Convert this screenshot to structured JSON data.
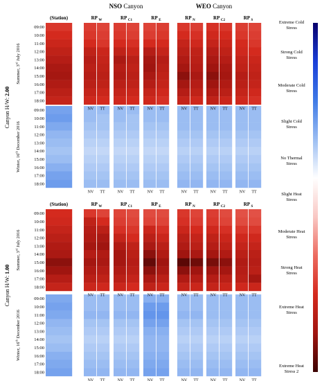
{
  "figure": {
    "canyon_titles": [
      {
        "prefix": "NSO",
        "suffix": " Canyon"
      },
      {
        "prefix": "WEO",
        "suffix": " Canyon"
      }
    ],
    "columns": [
      {
        "main": "(Station)",
        "sub": ""
      },
      {
        "main": "RP",
        "sub": "W"
      },
      {
        "main": "RP",
        "sub": "C1"
      },
      {
        "main": "RP",
        "sub": "E"
      },
      {
        "main": "RP",
        "sub": "N"
      },
      {
        "main": "RP",
        "sub": "C2"
      },
      {
        "main": "RP",
        "sub": "S"
      }
    ],
    "subcolumns": [
      "NV",
      "TT"
    ],
    "hours": [
      "09:00",
      "10:00",
      "11:00",
      "12:00",
      "13:00",
      "14:00",
      "15:00",
      "16:00",
      "17:00",
      "18:00"
    ],
    "row_labels": [
      {
        "season": "Summer, 3",
        "sup": "rd",
        "date": " July 2016"
      },
      {
        "season": "Winter, 16",
        "sup": "th",
        "date": " December 2016"
      },
      {
        "season": "Summer, 3",
        "sup": "rd",
        "date": " July 2016"
      },
      {
        "season": "Winter, 16",
        "sup": "th",
        "date": " December 2016"
      }
    ],
    "outer_labels": [
      {
        "prefix": "Canyon H/W: ",
        "value": "2.00"
      },
      {
        "prefix": "Canyon H/W: ",
        "value": "1.00"
      }
    ]
  },
  "legend": {
    "labels": [
      "Extreme Cold Stress",
      "Strong Cold Stress",
      "Moderate Cold Stress",
      "Slight Cold Stress",
      "No Thermal Stress",
      "Slight Heat Stress",
      "Moderate Heat Stress",
      "Strong Heat Stress",
      "Extreme Heat Stress",
      "Extreme Heat Stress 2"
    ],
    "colors": [
      "#08006b",
      "#1a3fd8",
      "#3f7ae6",
      "#9bbdf2",
      "#ffffff",
      "#f9c8c4",
      "#ec6b60",
      "#d42a1e",
      "#a01510",
      "#3c0302"
    ]
  },
  "chart_data": {
    "type": "heatmap",
    "title": "",
    "x_groups": [
      "NSO Canyon",
      "WEO Canyon"
    ],
    "columns": [
      "(Station)",
      "RP W NV",
      "RP W TT",
      "RP C1 NV",
      "RP C1 TT",
      "RP E NV",
      "RP E TT",
      "RP N NV",
      "RP N TT",
      "RP C2 NV",
      "RP C2 TT",
      "RP S NV",
      "RP S TT"
    ],
    "hours": [
      "09:00",
      "10:00",
      "11:00",
      "12:00",
      "13:00",
      "14:00",
      "15:00",
      "16:00",
      "17:00",
      "18:00"
    ],
    "value_scale": "UTCI thermal stress category, 0 = Extreme Cold Stress ... 9 = Extreme Heat Stress 2",
    "panels": [
      {
        "canyon_hw": "2.00",
        "period": "Summer, 3rd July 2016",
        "values": [
          [
            6.8,
            6.7,
            6.6,
            6.7,
            6.6,
            6.6,
            6.7,
            6.8,
            6.7,
            6.9,
            6.8,
            6.7,
            6.6
          ],
          [
            7.0,
            6.8,
            6.7,
            6.8,
            6.7,
            6.7,
            6.8,
            7.0,
            6.9,
            7.1,
            7.0,
            6.8,
            6.7
          ],
          [
            7.2,
            7.0,
            6.8,
            7.0,
            6.9,
            7.0,
            7.0,
            7.3,
            7.1,
            7.3,
            7.2,
            7.0,
            6.8
          ],
          [
            7.4,
            7.4,
            7.2,
            7.4,
            7.2,
            7.6,
            7.3,
            7.5,
            7.4,
            7.6,
            7.4,
            7.1,
            7.0
          ],
          [
            7.6,
            7.6,
            7.3,
            7.8,
            7.5,
            7.9,
            7.6,
            7.7,
            7.5,
            7.8,
            7.6,
            7.3,
            7.2
          ],
          [
            7.8,
            7.5,
            7.4,
            7.6,
            7.4,
            8.0,
            7.5,
            7.9,
            7.6,
            8.0,
            7.8,
            7.4,
            7.3
          ],
          [
            7.9,
            7.6,
            7.5,
            7.7,
            7.5,
            7.8,
            7.4,
            8.2,
            7.8,
            8.2,
            7.9,
            7.6,
            7.4
          ],
          [
            7.7,
            7.5,
            7.4,
            7.5,
            7.4,
            7.6,
            7.3,
            7.9,
            7.6,
            8.0,
            7.7,
            7.5,
            7.3
          ],
          [
            7.5,
            7.3,
            7.2,
            7.3,
            7.2,
            7.3,
            7.1,
            7.6,
            7.4,
            7.7,
            7.5,
            7.3,
            7.1
          ],
          [
            7.3,
            7.1,
            7.0,
            7.1,
            7.0,
            7.1,
            6.9,
            7.3,
            7.1,
            7.4,
            7.2,
            7.1,
            6.9
          ]
        ]
      },
      {
        "canyon_hw": "2.00",
        "period": "Winter, 16th December 2016",
        "values": [
          [
            2.6,
            3.0,
            3.0,
            3.0,
            3.0,
            3.0,
            3.0,
            3.0,
            3.0,
            3.0,
            3.0,
            3.0,
            3.0
          ],
          [
            2.5,
            3.0,
            3.1,
            3.0,
            3.1,
            3.0,
            3.0,
            3.0,
            3.0,
            3.0,
            3.0,
            3.0,
            3.0
          ],
          [
            2.7,
            3.1,
            3.1,
            3.1,
            3.1,
            3.1,
            3.1,
            3.0,
            3.0,
            3.0,
            3.0,
            3.0,
            3.0
          ],
          [
            2.9,
            3.2,
            3.2,
            3.2,
            3.2,
            3.2,
            3.2,
            3.1,
            3.1,
            3.1,
            3.1,
            3.1,
            3.1
          ],
          [
            3.0,
            3.3,
            3.3,
            3.3,
            3.3,
            3.3,
            3.3,
            3.2,
            3.2,
            3.2,
            3.2,
            3.2,
            3.2
          ],
          [
            3.1,
            3.4,
            3.4,
            3.4,
            3.4,
            3.4,
            3.4,
            3.3,
            3.3,
            3.3,
            3.3,
            3.3,
            3.3
          ],
          [
            3.0,
            3.3,
            3.3,
            3.3,
            3.3,
            3.3,
            3.3,
            3.2,
            3.2,
            3.2,
            3.2,
            3.2,
            3.2
          ],
          [
            2.8,
            3.2,
            3.2,
            3.2,
            3.2,
            3.2,
            3.2,
            3.1,
            3.1,
            3.1,
            3.1,
            3.1,
            3.1
          ],
          [
            2.6,
            3.1,
            3.1,
            3.1,
            3.1,
            3.1,
            3.1,
            3.0,
            3.0,
            3.0,
            3.0,
            3.0,
            3.0
          ],
          [
            2.5,
            3.0,
            3.0,
            3.0,
            3.0,
            3.0,
            3.0,
            2.9,
            2.9,
            2.9,
            2.9,
            2.9,
            2.9
          ]
        ]
      },
      {
        "canyon_hw": "1.00",
        "period": "Summer, 3rd July 2016",
        "values": [
          [
            7.0,
            6.8,
            6.6,
            6.6,
            6.5,
            6.5,
            6.5,
            6.8,
            6.6,
            6.7,
            6.5,
            6.4,
            6.4
          ],
          [
            7.1,
            7.4,
            7.0,
            6.7,
            6.6,
            6.6,
            6.6,
            6.9,
            6.7,
            6.8,
            6.6,
            6.5,
            6.5
          ],
          [
            7.3,
            7.6,
            7.5,
            6.9,
            6.8,
            7.2,
            6.9,
            7.2,
            7.0,
            7.1,
            6.9,
            6.8,
            6.8
          ],
          [
            7.5,
            7.7,
            7.8,
            7.3,
            7.0,
            7.5,
            7.2,
            7.5,
            7.3,
            7.4,
            7.2,
            7.1,
            7.1
          ],
          [
            7.7,
            7.9,
            8.0,
            7.7,
            7.4,
            7.8,
            7.5,
            7.7,
            7.5,
            7.6,
            7.4,
            7.3,
            7.3
          ],
          [
            7.8,
            7.6,
            7.7,
            7.9,
            7.5,
            8.2,
            7.7,
            8.0,
            7.8,
            7.9,
            7.7,
            7.5,
            7.5
          ],
          [
            8.2,
            7.9,
            7.8,
            7.9,
            7.6,
            8.6,
            8.0,
            8.7,
            8.5,
            8.4,
            8.2,
            7.7,
            7.6
          ],
          [
            8.0,
            7.7,
            7.6,
            7.7,
            7.5,
            8.2,
            7.8,
            8.2,
            8.0,
            8.0,
            7.9,
            7.6,
            7.5
          ],
          [
            7.6,
            7.5,
            7.4,
            7.5,
            7.3,
            7.8,
            7.5,
            7.7,
            7.6,
            7.6,
            7.5,
            7.5,
            7.9
          ],
          [
            7.3,
            7.2,
            7.1,
            7.2,
            7.0,
            7.4,
            7.2,
            7.3,
            7.2,
            7.3,
            7.2,
            7.1,
            7.2
          ]
        ]
      },
      {
        "canyon_hw": "1.00",
        "period": "Winter, 16th December 2016",
        "values": [
          [
            2.7,
            3.0,
            3.0,
            3.0,
            3.0,
            2.8,
            2.8,
            3.0,
            3.0,
            3.0,
            3.0,
            3.0,
            3.0
          ],
          [
            2.6,
            3.0,
            3.0,
            3.0,
            3.0,
            2.5,
            2.5,
            3.0,
            3.0,
            3.0,
            3.0,
            3.0,
            3.0
          ],
          [
            2.7,
            2.9,
            2.9,
            2.9,
            2.9,
            2.4,
            2.4,
            2.9,
            2.9,
            3.0,
            3.0,
            3.0,
            3.0
          ],
          [
            2.9,
            3.1,
            3.1,
            3.1,
            3.1,
            2.6,
            2.6,
            3.1,
            3.1,
            3.1,
            3.1,
            3.1,
            3.1
          ],
          [
            3.0,
            3.2,
            3.2,
            3.2,
            3.2,
            2.8,
            2.8,
            3.2,
            3.2,
            3.2,
            3.2,
            3.2,
            3.2
          ],
          [
            3.1,
            3.3,
            3.3,
            3.3,
            3.3,
            2.9,
            2.9,
            3.3,
            3.3,
            3.3,
            3.3,
            3.3,
            3.3
          ],
          [
            3.0,
            3.2,
            3.2,
            3.2,
            3.2,
            2.9,
            2.9,
            3.2,
            3.2,
            3.2,
            3.2,
            3.2,
            3.2
          ],
          [
            2.8,
            3.1,
            3.1,
            3.1,
            3.1,
            2.8,
            2.8,
            3.1,
            3.1,
            3.1,
            3.1,
            3.1,
            3.1
          ],
          [
            2.7,
            3.0,
            3.0,
            3.0,
            3.0,
            2.7,
            2.7,
            3.0,
            3.0,
            3.0,
            3.0,
            3.0,
            3.0
          ],
          [
            2.6,
            2.9,
            2.9,
            2.9,
            2.9,
            2.6,
            2.6,
            2.9,
            2.9,
            2.9,
            2.9,
            2.9,
            2.9
          ]
        ]
      }
    ]
  }
}
